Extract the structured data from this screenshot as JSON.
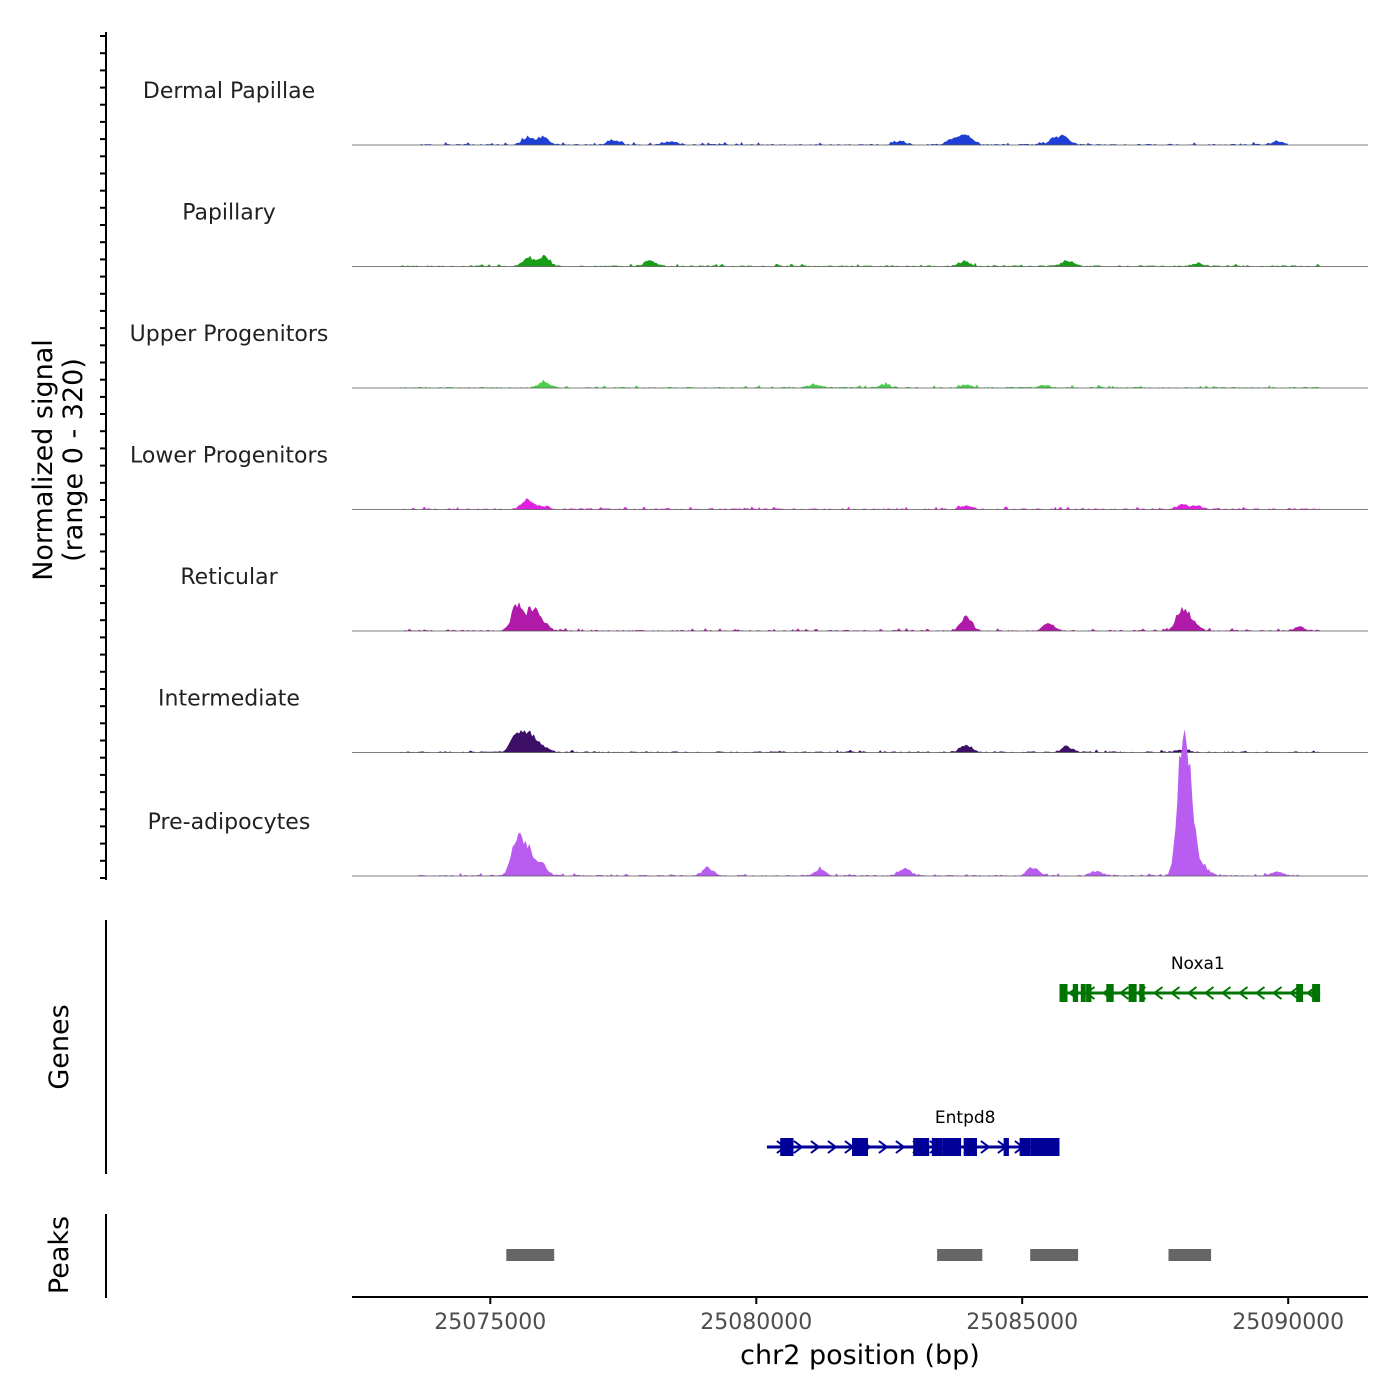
{
  "chart_data": {
    "type": "area",
    "title": "",
    "xlabel": "chr2 position (bp)",
    "ylabel": "Normalized signal",
    "ylabel_range": "(range 0 - 320)",
    "ylim": [
      0,
      320
    ],
    "xlim": [
      25072400,
      25091500
    ],
    "x_ticks": [
      25075000,
      25080000,
      25085000,
      25090000
    ],
    "x_tick_labels": [
      "25075000",
      "25080000",
      "25085000",
      "25090000"
    ],
    "series": [
      {
        "name": "Dermal Papillae",
        "color": "#1f3fd6",
        "data_range": [
          25073600,
          25090000
        ],
        "peaks": [
          [
            25075700,
            20
          ],
          [
            25076000,
            22
          ],
          [
            25077300,
            12
          ],
          [
            25078400,
            10
          ],
          [
            25082700,
            10
          ],
          [
            25083700,
            20
          ],
          [
            25083950,
            28
          ],
          [
            25085600,
            16
          ],
          [
            25085800,
            20
          ],
          [
            25089800,
            10
          ]
        ]
      },
      {
        "name": "Papillary",
        "color": "#1a9e1a",
        "data_range": [
          25073300,
          25090600
        ],
        "peaks": [
          [
            25075700,
            22
          ],
          [
            25076000,
            26
          ],
          [
            25078000,
            16
          ],
          [
            25083900,
            13
          ],
          [
            25085850,
            18
          ],
          [
            25088300,
            9
          ]
        ]
      },
      {
        "name": "Upper Progenitors",
        "color": "#4cd04c",
        "data_range": [
          25073300,
          25090600
        ],
        "peaks": [
          [
            25076000,
            16
          ],
          [
            25081100,
            10
          ],
          [
            25082400,
            9
          ],
          [
            25083950,
            10
          ],
          [
            25085400,
            7
          ]
        ]
      },
      {
        "name": "Lower Progenitors",
        "color": "#e020e0",
        "data_range": [
          25073300,
          25090600
        ],
        "peaks": [
          [
            25075700,
            26
          ],
          [
            25076000,
            10
          ],
          [
            25083950,
            11
          ],
          [
            25088000,
            13
          ],
          [
            25088300,
            9
          ]
        ]
      },
      {
        "name": "Reticular",
        "color": "#b01aa8",
        "data_range": [
          25073300,
          25090600
        ],
        "peaks": [
          [
            25075500,
            70
          ],
          [
            25075800,
            66
          ],
          [
            25076000,
            18
          ],
          [
            25083950,
            40
          ],
          [
            25085500,
            22
          ],
          [
            25088000,
            60
          ],
          [
            25088200,
            25
          ],
          [
            25090200,
            10
          ]
        ]
      },
      {
        "name": "Intermediate",
        "color": "#3d0f66",
        "data_range": [
          25073300,
          25090600
        ],
        "peaks": [
          [
            25075500,
            60
          ],
          [
            25075750,
            48
          ],
          [
            25076000,
            16
          ],
          [
            25083950,
            20
          ],
          [
            25085850,
            16
          ],
          [
            25088000,
            8
          ]
        ]
      },
      {
        "name": "Pre-adipocytes",
        "color": "#b95cf0",
        "data_range": [
          25073600,
          25090200
        ],
        "peaks": [
          [
            25075500,
            95
          ],
          [
            25075700,
            70
          ],
          [
            25075950,
            35
          ],
          [
            25079100,
            22
          ],
          [
            25081200,
            18
          ],
          [
            25082800,
            20
          ],
          [
            25085200,
            24
          ],
          [
            25086400,
            14
          ],
          [
            25088000,
            320
          ],
          [
            25088150,
            210
          ],
          [
            25088400,
            28
          ],
          [
            25089800,
            12
          ]
        ]
      }
    ],
    "genes": [
      {
        "name": "Noxa1",
        "color": "#007400",
        "start": 25085700,
        "end": 25090600,
        "strand": "-",
        "exons": [
          [
            25085700,
            25085850
          ],
          [
            25085950,
            25086050
          ],
          [
            25086100,
            25086150
          ],
          [
            25086200,
            25086300
          ],
          [
            25086580,
            25086720
          ],
          [
            25087000,
            25087150
          ],
          [
            25087200,
            25087300
          ],
          [
            25090150,
            25090280
          ],
          [
            25090450,
            25090600
          ]
        ]
      },
      {
        "name": "Entpd8",
        "color": "#000099",
        "start": 25080200,
        "end": 25085700,
        "strand": "+",
        "exons": [
          [
            25080450,
            25080700
          ],
          [
            25081800,
            25082100
          ],
          [
            25082950,
            25083250
          ],
          [
            25083300,
            25083500
          ],
          [
            25083500,
            25083850
          ],
          [
            25083900,
            25084150
          ],
          [
            25084650,
            25084750
          ],
          [
            25084950,
            25085150
          ],
          [
            25085150,
            25085700
          ]
        ]
      }
    ],
    "peak_regions": [
      [
        25075300,
        25076200
      ],
      [
        25083400,
        25084250
      ],
      [
        25085150,
        25086050
      ],
      [
        25087750,
        25088550
      ]
    ],
    "panels": [
      "Normalized signal",
      "Genes",
      "Peaks"
    ]
  },
  "labels": {
    "ylabel": "Normalized signal",
    "ylabel_range": "(range 0 - 320)",
    "genes_title": "Genes",
    "peaks_title": "Peaks",
    "xlabel": "chr2 position (bp)"
  }
}
